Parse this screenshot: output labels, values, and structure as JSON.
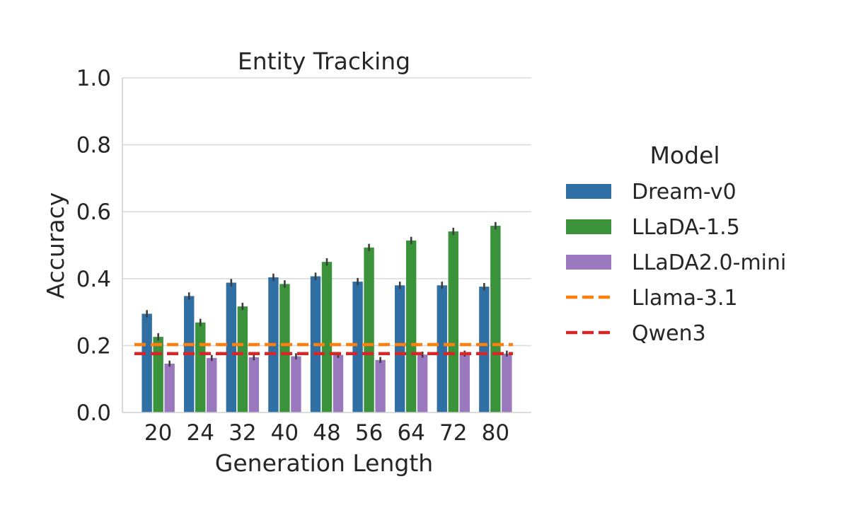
{
  "chart_data": {
    "type": "bar",
    "title": "Entity Tracking",
    "xlabel": "Generation Length",
    "ylabel": "Accuracy",
    "ylim": [
      0,
      1.0
    ],
    "yticks": [
      "0.0",
      "0.2",
      "0.4",
      "0.6",
      "0.8",
      "1.0"
    ],
    "grid": true,
    "categories": [
      "20",
      "24",
      "32",
      "40",
      "48",
      "56",
      "64",
      "72",
      "80"
    ],
    "series": [
      {
        "name": "Dream-v0",
        "color": "#2f6fa3",
        "values": [
          0.295,
          0.348,
          0.388,
          0.404,
          0.407,
          0.391,
          0.38,
          0.38,
          0.376
        ],
        "errors": [
          0.011,
          0.011,
          0.011,
          0.011,
          0.011,
          0.011,
          0.011,
          0.011,
          0.011
        ]
      },
      {
        "name": "LLaDA-1.5",
        "color": "#3a923a",
        "values": [
          0.226,
          0.269,
          0.317,
          0.384,
          0.45,
          0.493,
          0.514,
          0.541,
          0.558
        ],
        "errors": [
          0.011,
          0.011,
          0.011,
          0.011,
          0.011,
          0.011,
          0.011,
          0.011,
          0.011
        ]
      },
      {
        "name": "LLaDA2.0-mini",
        "color": "#9978bd",
        "values": [
          0.146,
          0.163,
          0.165,
          0.168,
          0.172,
          0.157,
          0.173,
          0.176,
          0.176
        ],
        "errors": [
          0.009,
          0.009,
          0.009,
          0.009,
          0.009,
          0.009,
          0.009,
          0.009,
          0.009
        ]
      }
    ],
    "reference_lines": [
      {
        "name": "Llama-3.1",
        "color": "#ff7f0e",
        "value": 0.203,
        "style": "dashed"
      },
      {
        "name": "Qwen3",
        "color": "#d62728",
        "value": 0.176,
        "style": "dashed"
      }
    ],
    "legend": {
      "title": "Model",
      "placement": "right"
    }
  }
}
